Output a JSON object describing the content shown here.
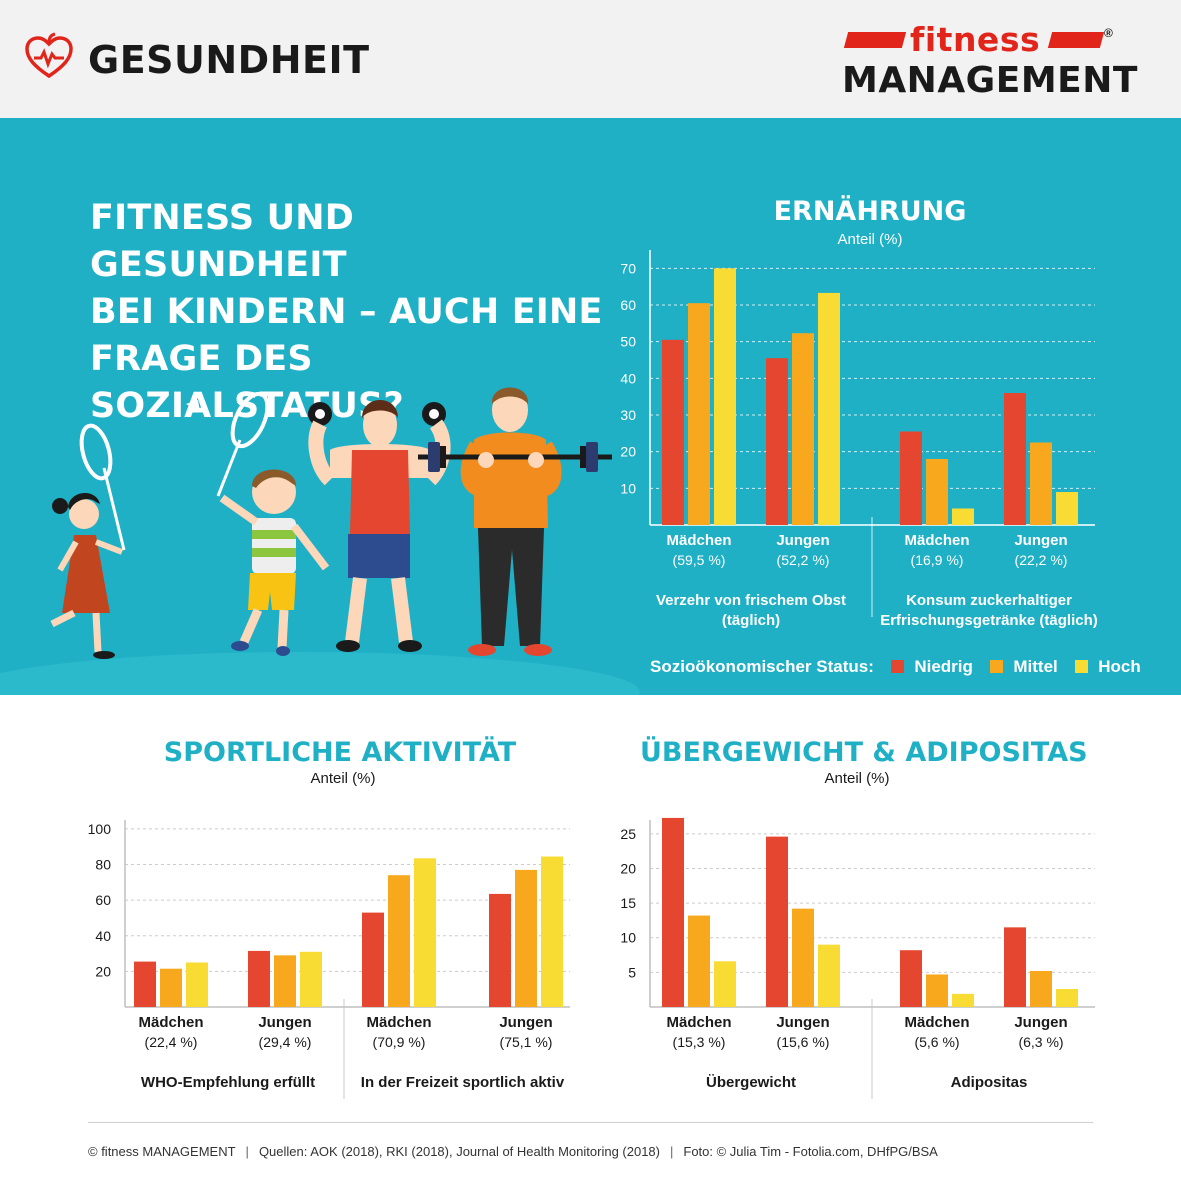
{
  "header": {
    "title": "GESUNDHEIT",
    "icon": "heart-apple-icon"
  },
  "logo": {
    "top": "fitness",
    "bottom": "MANAGEMENT",
    "reg": "®",
    "brand_color": "#e1251b"
  },
  "headline": [
    "FITNESS UND GESUNDHEIT",
    "BEI KINDERN – AUCH EINE",
    "FRAGE DES SOZIALSTATUS?"
  ],
  "colors": {
    "teal": "#1fb0c6",
    "niedrig": "#e4462f",
    "mittel": "#f8a81c",
    "hoch": "#f8dc33",
    "title_teal": "#1fb0c6"
  },
  "legend": {
    "label": "Sozioökonomischer Status:",
    "items": [
      "Niedrig",
      "Mittel",
      "Hoch"
    ]
  },
  "chart_data": [
    {
      "id": "ernaehrung",
      "type": "bar",
      "title": "ERNÄHRUNG",
      "ylabel": "Anteil (%)",
      "ylim": [
        0,
        75
      ],
      "yticks": [
        10,
        20,
        30,
        40,
        50,
        60,
        70
      ],
      "grid": true,
      "series": [
        {
          "name": "Niedrig",
          "values": [
            50.5,
            45.5,
            25.5,
            36
          ]
        },
        {
          "name": "Mittel",
          "values": [
            60.5,
            52.3,
            18,
            22.5
          ]
        },
        {
          "name": "Hoch",
          "values": [
            70,
            63.3,
            4.5,
            9
          ]
        }
      ],
      "categories": [
        {
          "label": "Mädchen",
          "sub": "(59,5 %)"
        },
        {
          "label": "Jungen",
          "sub": "(52,2 %)"
        },
        {
          "label": "Mädchen",
          "sub": "(16,9 %)"
        },
        {
          "label": "Jungen",
          "sub": "(22,2 %)"
        }
      ],
      "groups": [
        {
          "label": [
            "Verzehr von frischem Obst",
            "(täglich)"
          ]
        },
        {
          "label": [
            "Konsum zuckerhaltiger",
            "Erfrischungsgetränke (täglich)"
          ]
        }
      ]
    },
    {
      "id": "sport",
      "type": "bar",
      "title": "SPORTLICHE AKTIVITÄT",
      "ylabel": "Anteil (%)",
      "ylim": [
        0,
        105
      ],
      "yticks": [
        20,
        40,
        60,
        80,
        100
      ],
      "grid": true,
      "series": [
        {
          "name": "Niedrig",
          "values": [
            25.5,
            31.5,
            53,
            63.5
          ]
        },
        {
          "name": "Mittel",
          "values": [
            21.5,
            29,
            74,
            77
          ]
        },
        {
          "name": "Hoch",
          "values": [
            25,
            31,
            83.5,
            84.5
          ]
        }
      ],
      "categories": [
        {
          "label": "Mädchen",
          "sub": "(22,4 %)"
        },
        {
          "label": "Jungen",
          "sub": "(29,4 %)"
        },
        {
          "label": "Mädchen",
          "sub": "(70,9 %)"
        },
        {
          "label": "Jungen",
          "sub": "(75,1 %)"
        }
      ],
      "groups": [
        {
          "label": [
            "WHO-Empfehlung erfüllt"
          ]
        },
        {
          "label": [
            "In der Freizeit sportlich aktiv"
          ]
        }
      ]
    },
    {
      "id": "uebergewicht",
      "type": "bar",
      "title": "ÜBERGEWICHT & ADIPOSITAS",
      "ylabel": "Anteil (%)",
      "ylim": [
        0,
        27
      ],
      "yticks": [
        5,
        10,
        15,
        20,
        25
      ],
      "grid": true,
      "series": [
        {
          "name": "Niedrig",
          "values": [
            27.3,
            24.6,
            8.2,
            11.5
          ]
        },
        {
          "name": "Mittel",
          "values": [
            13.2,
            14.2,
            4.7,
            5.2
          ]
        },
        {
          "name": "Hoch",
          "values": [
            6.6,
            9,
            1.9,
            2.6
          ]
        }
      ],
      "categories": [
        {
          "label": "Mädchen",
          "sub": "(15,3 %)"
        },
        {
          "label": "Jungen",
          "sub": "(15,6 %)"
        },
        {
          "label": "Mädchen",
          "sub": "(5,6 %)"
        },
        {
          "label": "Jungen",
          "sub": "(6,3 %)"
        }
      ],
      "groups": [
        {
          "label": [
            "Übergewicht"
          ]
        },
        {
          "label": [
            "Adipositas"
          ]
        }
      ]
    }
  ],
  "footer": {
    "copyright": "© fitness MANAGEMENT",
    "sources": "Quellen: AOK (2018), RKI (2018), Journal of Health Monitoring (2018)",
    "photo": "Foto: © Julia Tim - Fotolia.com, DHfPG/BSA"
  }
}
